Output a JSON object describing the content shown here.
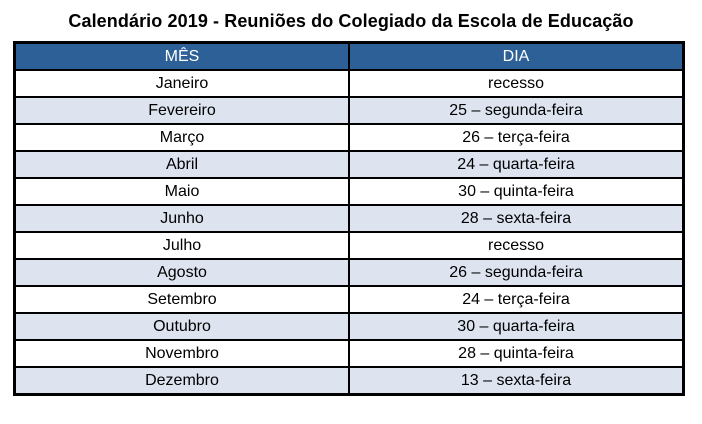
{
  "title": "Calendário 2019 - Reuniões do Colegiado da Escola de Educação",
  "colors": {
    "header_bg": "#2d6096",
    "header_text": "#ffffff",
    "row_alt_bg": "#dde4f0",
    "border": "#000000"
  },
  "table": {
    "headers": [
      "MÊS",
      "DIA"
    ],
    "rows": [
      [
        "Janeiro",
        "recesso"
      ],
      [
        "Fevereiro",
        "25 – segunda-feira"
      ],
      [
        "Março",
        "26 – terça-feira"
      ],
      [
        "Abril",
        "24 – quarta-feira"
      ],
      [
        "Maio",
        "30 – quinta-feira"
      ],
      [
        "Junho",
        "28 – sexta-feira"
      ],
      [
        "Julho",
        "recesso"
      ],
      [
        "Agosto",
        "26 – segunda-feira"
      ],
      [
        "Setembro",
        "24 – terça-feira"
      ],
      [
        "Outubro",
        "30 – quarta-feira"
      ],
      [
        "Novembro",
        "28 – quinta-feira"
      ],
      [
        "Dezembro",
        "13 – sexta-feira"
      ]
    ]
  }
}
